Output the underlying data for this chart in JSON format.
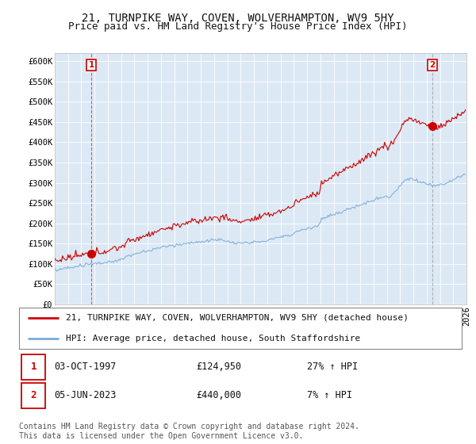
{
  "title": "21, TURNPIKE WAY, COVEN, WOLVERHAMPTON, WV9 5HY",
  "subtitle": "Price paid vs. HM Land Registry's House Price Index (HPI)",
  "ylim": [
    0,
    620000
  ],
  "yticks": [
    0,
    50000,
    100000,
    150000,
    200000,
    250000,
    300000,
    350000,
    400000,
    450000,
    500000,
    550000,
    600000
  ],
  "ytick_labels": [
    "£0",
    "£50K",
    "£100K",
    "£150K",
    "£200K",
    "£250K",
    "£300K",
    "£350K",
    "£400K",
    "£450K",
    "£500K",
    "£550K",
    "£600K"
  ],
  "hpi_color": "#7aabdb",
  "price_color": "#cc0000",
  "background_color": "#ffffff",
  "plot_bg_color": "#dce9f5",
  "grid_color": "#ffffff",
  "sale1_year": 1997.75,
  "sale1_price": 124950,
  "sale2_year": 2023.42,
  "sale2_price": 440000,
  "legend_property": "21, TURNPIKE WAY, COVEN, WOLVERHAMPTON, WV9 5HY (detached house)",
  "legend_hpi": "HPI: Average price, detached house, South Staffordshire",
  "footnote": "Contains HM Land Registry data © Crown copyright and database right 2024.\nThis data is licensed under the Open Government Licence v3.0.",
  "title_fontsize": 10,
  "subtitle_fontsize": 9,
  "tick_fontsize": 7.5,
  "legend_fontsize": 8,
  "annotation_fontsize": 8.5,
  "footnote_fontsize": 7
}
